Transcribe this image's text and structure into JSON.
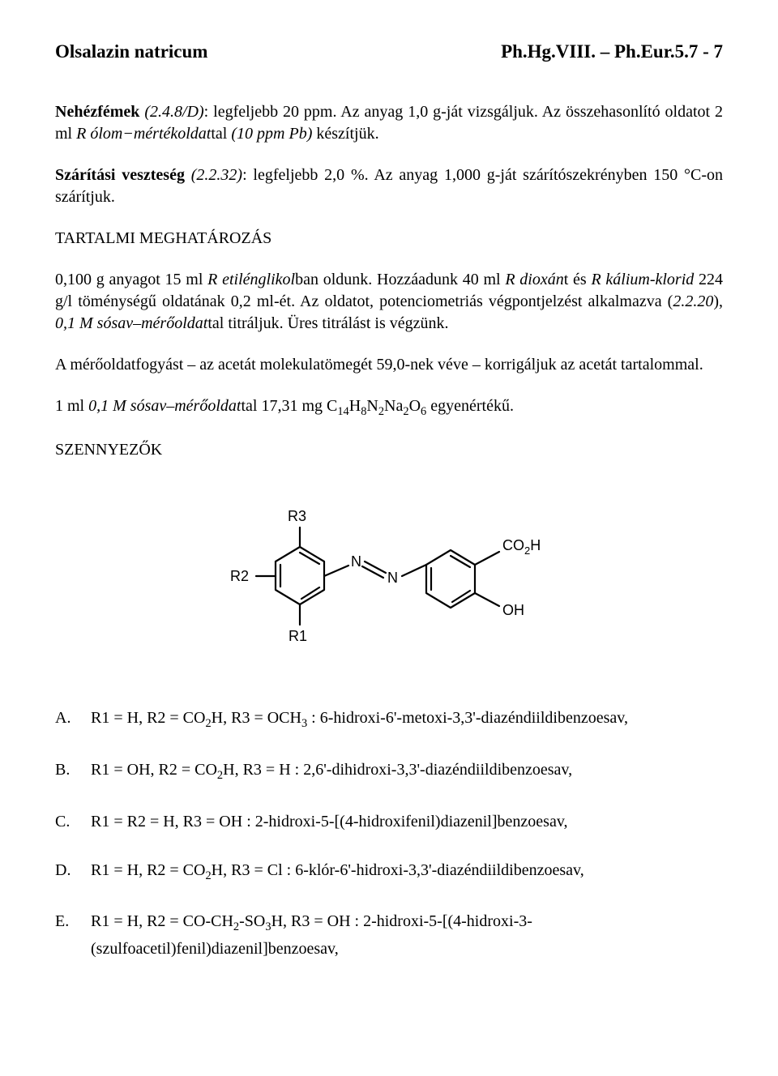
{
  "header": {
    "left": "Olsalazin natricum",
    "right": "Ph.Hg.VIII. – Ph.Eur.5.7 - 7"
  },
  "paragraphs": {
    "heavy_metals_html": "<b>Nehézfémek</b> <i>(2.4.8/D)</i>: legfeljebb 20 ppm. Az anyag 1,0 g-ját vizsgáljuk. Az összehasonlító oldatot 2 ml <i>R ólom−mértékoldat</i>tal <i>(10 ppm Pb)</i> készítjük.",
    "drying_loss_html": "<b>Szárítási veszteség</b> <i>(2.2.32)</i>: legfeljebb 2,0 %. Az anyag 1,000 g-ját szárítószekrényben 150 °C-on szárítjuk.",
    "assay_title": "TARTALMI MEGHATÁROZÁS",
    "assay_body_html": "0,100 g anyagot 15 ml <i>R etilénglikol</i>ban oldunk. Hozzáadunk 40 ml <i>R dioxán</i>t és <i>R kálium-klorid</i> 224 g/l töménységű oldatának 0,2 ml-ét. Az oldatot, potenciometriás végpontjelzést alkalmazva (<i>2.2.20</i>), <i>0,1 M sósav–mérőoldat</i>tal titráljuk. Üres titrálást is végzünk.",
    "correction_html": "A mérőoldatfogyást – az acetát molekulatömegét 59,0-nek véve – korrigáljuk az acetát tartalommal.",
    "equivalence_html": "1 ml <i>0,1 M sósav–mérőoldat</i>tal 17,31 mg C<sub>14</sub>H<sub>8</sub>N<sub>2</sub>Na<sub>2</sub>O<sub>6</sub> egyenértékű.",
    "impurities_title": "SZENNYEZŐK"
  },
  "structure": {
    "labels": {
      "R1": "R1",
      "R2": "R2",
      "R3": "R3",
      "N_left": "N",
      "N_right": "N",
      "CO2H": "CO",
      "CO2H_sub": "2",
      "CO2H_tail": "H",
      "OH": "OH"
    }
  },
  "impurities": [
    {
      "letter": "A.",
      "html": "R1 = H, R2 = CO<sub>2</sub>H, R3 = OCH<sub>3</sub> : 6-hidroxi-6'-metoxi-3,3'-diazéndiildibenzoesav,"
    },
    {
      "letter": "B.",
      "html": "R1 = OH, R2 = CO<sub>2</sub>H, R3 = H : 2,6'-dihidroxi-3,3'-diazéndiildibenzoesav,"
    },
    {
      "letter": "C.",
      "html": "R1 = R2 = H, R3 = OH : 2-hidroxi-5-[(4-hidroxifenil)diazenil]benzoesav,"
    },
    {
      "letter": "D.",
      "html": "R1 = H, R2 = CO<sub>2</sub>H, R3 = Cl : 6-klór-6'-hidroxi-3,3'-diazéndiildibenzoesav,"
    },
    {
      "letter": "E.",
      "html": "R1 = H, R2 = CO-CH<sub>2</sub>-SO<sub>3</sub>H, R3 = OH : 2-hidroxi-5-[(4-hidroxi-3-(szulfoacetil)fenil)diazenil]benzoesav,"
    }
  ],
  "colors": {
    "text": "#000000",
    "background": "#ffffff"
  }
}
